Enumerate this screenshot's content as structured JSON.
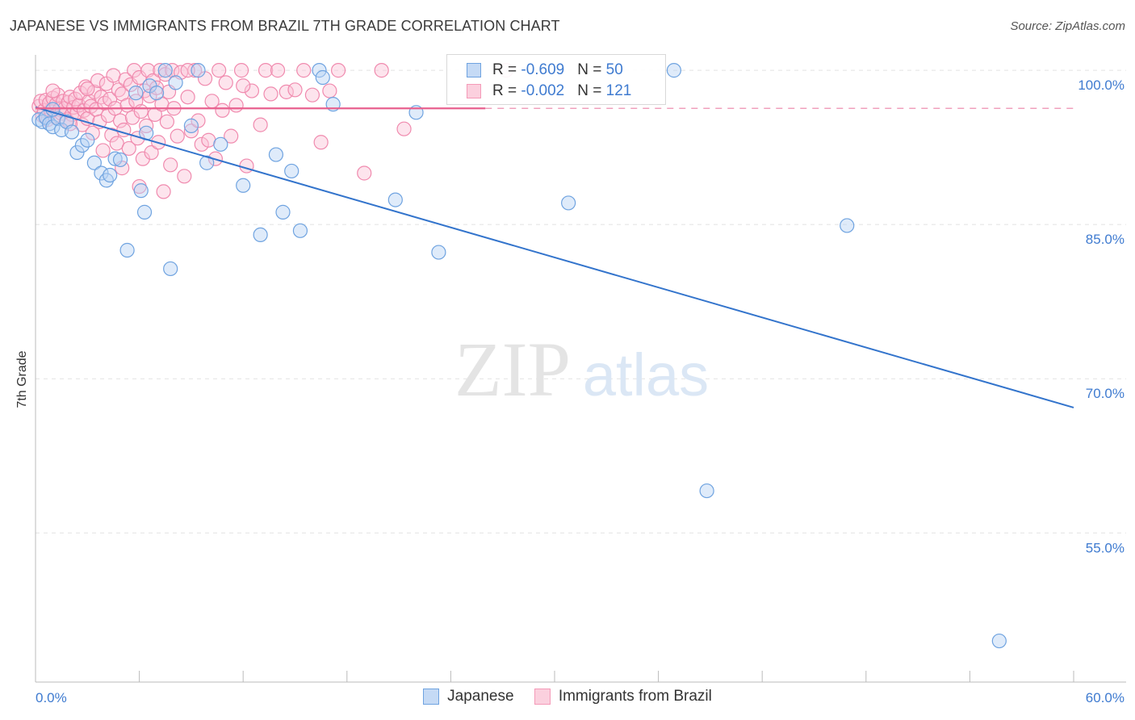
{
  "chart_data": {
    "type": "scatter",
    "title": "JAPANESE VS IMMIGRANTS FROM BRAZIL 7TH GRADE CORRELATION CHART",
    "source": "Source: ZipAtlas.com",
    "ylabel": "7th Grade",
    "xlabel": "",
    "watermark": {
      "zip": "ZIP",
      "atlas": "atlas"
    },
    "xlim": [
      0,
      60
    ],
    "ylim": [
      40.5,
      101.5
    ],
    "x_tick_labels": {
      "left": "0.0%",
      "right": "60.0%"
    },
    "y_ticks": [
      {
        "value": 100,
        "label": "100.0%"
      },
      {
        "value": 85,
        "label": "85.0%"
      },
      {
        "value": 70,
        "label": "70.0%"
      },
      {
        "value": 55,
        "label": "55.0%"
      }
    ],
    "grid": true,
    "legend_placement": "top-center",
    "series": [
      {
        "name": "Japanese",
        "color": "#6fa3e0",
        "line_color": "#3374cc",
        "R_label": "R = ",
        "R": "-0.609",
        "N_label": "N = ",
        "N": "50",
        "trend": {
          "x0": 0,
          "y0": 96.4,
          "x1": 60,
          "y1": 67.2,
          "dashed_extension": false
        },
        "points": [
          [
            0.2,
            95.2
          ],
          [
            0.4,
            95.0
          ],
          [
            0.6,
            95.4
          ],
          [
            0.8,
            94.8
          ],
          [
            1.0,
            94.5
          ],
          [
            1.3,
            95.3
          ],
          [
            1.5,
            94.2
          ],
          [
            1.8,
            95.0
          ],
          [
            2.1,
            94.0
          ],
          [
            2.4,
            92.0
          ],
          [
            2.7,
            92.7
          ],
          [
            3.0,
            93.2
          ],
          [
            3.4,
            91.0
          ],
          [
            3.8,
            90.0
          ],
          [
            4.1,
            89.3
          ],
          [
            4.6,
            91.4
          ],
          [
            4.9,
            91.3
          ],
          [
            5.3,
            82.5
          ],
          [
            5.8,
            97.8
          ],
          [
            6.1,
            88.3
          ],
          [
            6.3,
            86.2
          ],
          [
            6.6,
            98.5
          ],
          [
            6.4,
            93.9
          ],
          [
            7.0,
            97.8
          ],
          [
            7.5,
            100.0
          ],
          [
            7.8,
            80.7
          ],
          [
            8.1,
            98.8
          ],
          [
            9.0,
            94.6
          ],
          [
            9.4,
            100.0
          ],
          [
            9.9,
            91.0
          ],
          [
            10.7,
            92.8
          ],
          [
            12.0,
            88.8
          ],
          [
            13.0,
            84.0
          ],
          [
            13.9,
            91.8
          ],
          [
            14.3,
            86.2
          ],
          [
            14.8,
            90.2
          ],
          [
            15.3,
            84.4
          ],
          [
            16.4,
            100.0
          ],
          [
            16.6,
            99.3
          ],
          [
            17.2,
            96.7
          ],
          [
            20.8,
            87.4
          ],
          [
            22.0,
            95.9
          ],
          [
            23.3,
            82.3
          ],
          [
            30.8,
            87.1
          ],
          [
            36.9,
            100.0
          ],
          [
            46.9,
            84.9
          ],
          [
            38.8,
            59.1
          ],
          [
            55.7,
            44.5
          ],
          [
            1.0,
            96.2
          ],
          [
            4.3,
            89.8
          ]
        ]
      },
      {
        "name": "Immigrants from Brazil",
        "color": "#f49ab8",
        "line_color": "#e8608e",
        "R_label": "R = ",
        "R": "-0.002",
        "N_label": "N = ",
        "N": "121",
        "trend": {
          "x0": 0,
          "y0": 96.3,
          "x1": 60,
          "y1": 96.3,
          "solid_until": 26,
          "dashed_extension": true
        },
        "points": [
          [
            0.2,
            96.5
          ],
          [
            0.3,
            97.0
          ],
          [
            0.4,
            95.6
          ],
          [
            0.5,
            96.1
          ],
          [
            0.6,
            97.1
          ],
          [
            0.7,
            95.2
          ],
          [
            0.8,
            96.8
          ],
          [
            0.9,
            96.0
          ],
          [
            1.0,
            97.3
          ],
          [
            1.1,
            95.5
          ],
          [
            1.2,
            96.7
          ],
          [
            1.3,
            97.6
          ],
          [
            1.4,
            96.2
          ],
          [
            1.5,
            95.8
          ],
          [
            1.6,
            97.0
          ],
          [
            1.7,
            96.3
          ],
          [
            1.8,
            95.2
          ],
          [
            1.9,
            96.9
          ],
          [
            2.0,
            97.4
          ],
          [
            2.1,
            95.7
          ],
          [
            2.2,
            96.4
          ],
          [
            2.3,
            97.2
          ],
          [
            2.4,
            95.9
          ],
          [
            2.5,
            96.6
          ],
          [
            2.6,
            97.8
          ],
          [
            2.7,
            94.7
          ],
          [
            2.8,
            96.1
          ],
          [
            2.9,
            98.4
          ],
          [
            3.0,
            95.3
          ],
          [
            3.1,
            97.0
          ],
          [
            3.2,
            96.5
          ],
          [
            3.3,
            93.9
          ],
          [
            3.4,
            97.9
          ],
          [
            3.5,
            96.2
          ],
          [
            3.6,
            99.0
          ],
          [
            3.7,
            95.0
          ],
          [
            3.8,
            97.4
          ],
          [
            3.9,
            92.2
          ],
          [
            4.0,
            96.8
          ],
          [
            4.1,
            98.7
          ],
          [
            4.2,
            95.6
          ],
          [
            4.3,
            97.2
          ],
          [
            4.4,
            93.7
          ],
          [
            4.5,
            99.5
          ],
          [
            4.6,
            96.3
          ],
          [
            4.7,
            92.9
          ],
          [
            4.8,
            98.1
          ],
          [
            4.9,
            95.1
          ],
          [
            5.0,
            97.7
          ],
          [
            5.1,
            94.2
          ],
          [
            5.2,
            99.1
          ],
          [
            5.3,
            96.6
          ],
          [
            5.4,
            92.4
          ],
          [
            5.5,
            98.6
          ],
          [
            5.6,
            95.4
          ],
          [
            5.7,
            100.0
          ],
          [
            5.8,
            97.0
          ],
          [
            5.9,
            93.4
          ],
          [
            6.0,
            99.3
          ],
          [
            6.1,
            96.0
          ],
          [
            6.2,
            91.4
          ],
          [
            6.3,
            98.0
          ],
          [
            6.4,
            94.6
          ],
          [
            6.5,
            100.0
          ],
          [
            6.6,
            97.5
          ],
          [
            6.7,
            92.0
          ],
          [
            6.8,
            99.0
          ],
          [
            6.9,
            95.7
          ],
          [
            7.0,
            98.3
          ],
          [
            7.1,
            93.0
          ],
          [
            7.2,
            100.0
          ],
          [
            7.3,
            96.7
          ],
          [
            7.4,
            88.2
          ],
          [
            7.5,
            99.6
          ],
          [
            7.6,
            95.0
          ],
          [
            7.7,
            97.9
          ],
          [
            7.8,
            90.8
          ],
          [
            7.9,
            100.0
          ],
          [
            8.0,
            96.3
          ],
          [
            8.2,
            93.6
          ],
          [
            8.4,
            99.8
          ],
          [
            8.6,
            89.7
          ],
          [
            8.8,
            97.4
          ],
          [
            9.0,
            94.1
          ],
          [
            9.2,
            100.0
          ],
          [
            9.4,
            95.1
          ],
          [
            9.6,
            92.8
          ],
          [
            9.8,
            99.2
          ],
          [
            10.0,
            93.2
          ],
          [
            10.2,
            97.0
          ],
          [
            10.4,
            91.4
          ],
          [
            10.6,
            100.0
          ],
          [
            10.8,
            96.1
          ],
          [
            11.0,
            98.8
          ],
          [
            11.3,
            93.6
          ],
          [
            11.6,
            96.6
          ],
          [
            11.9,
            100.0
          ],
          [
            12.2,
            90.7
          ],
          [
            12.5,
            98.0
          ],
          [
            13.0,
            94.7
          ],
          [
            13.3,
            100.0
          ],
          [
            13.6,
            97.7
          ],
          [
            14.0,
            100.0
          ],
          [
            14.5,
            97.9
          ],
          [
            15.0,
            98.1
          ],
          [
            15.5,
            100.0
          ],
          [
            16.0,
            97.6
          ],
          [
            16.5,
            93.0
          ],
          [
            17.0,
            98.0
          ],
          [
            17.5,
            100.0
          ],
          [
            19.0,
            90.0
          ],
          [
            20.0,
            100.0
          ],
          [
            21.3,
            94.3
          ],
          [
            27.2,
            100.0
          ],
          [
            6.0,
            88.7
          ],
          [
            8.8,
            100.0
          ],
          [
            3.0,
            98.2
          ],
          [
            1.0,
            98.0
          ],
          [
            2.0,
            94.8
          ],
          [
            5.0,
            90.5
          ],
          [
            12.0,
            98.5
          ]
        ]
      }
    ]
  }
}
